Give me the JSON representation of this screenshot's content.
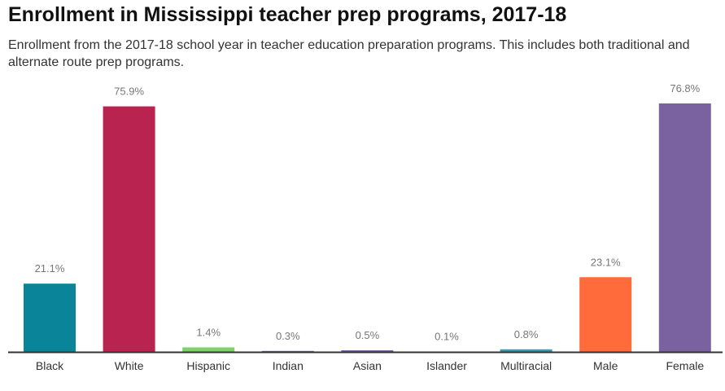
{
  "chart_data": {
    "type": "bar",
    "title": "Enrollment in Mississippi teacher prep programs, 2017-18",
    "subtitle": "Enrollment from the 2017-18 school year in teacher education preparation programs. This includes both traditional and alternate route prep programs.",
    "categories": [
      "Black",
      "White",
      "Hispanic",
      "Indian",
      "Asian",
      "Islander",
      "Multiracial",
      "Male",
      "Female"
    ],
    "values": [
      21.1,
      75.9,
      1.4,
      0.3,
      0.5,
      0.1,
      0.8,
      23.1,
      76.8
    ],
    "labels": [
      "21.1%",
      "75.9%",
      "1.4%",
      "0.3%",
      "0.5%",
      "0.1%",
      "0.8%",
      "23.1%",
      "76.8%"
    ],
    "colors": [
      "#0a8499",
      "#b8244f",
      "#7fd26a",
      "#7a62a0",
      "#7a62a0",
      "#7a62a0",
      "#3d9ab3",
      "#ff6b3b",
      "#7a62a0"
    ],
    "ylim": [
      0,
      80
    ],
    "grid": false
  }
}
